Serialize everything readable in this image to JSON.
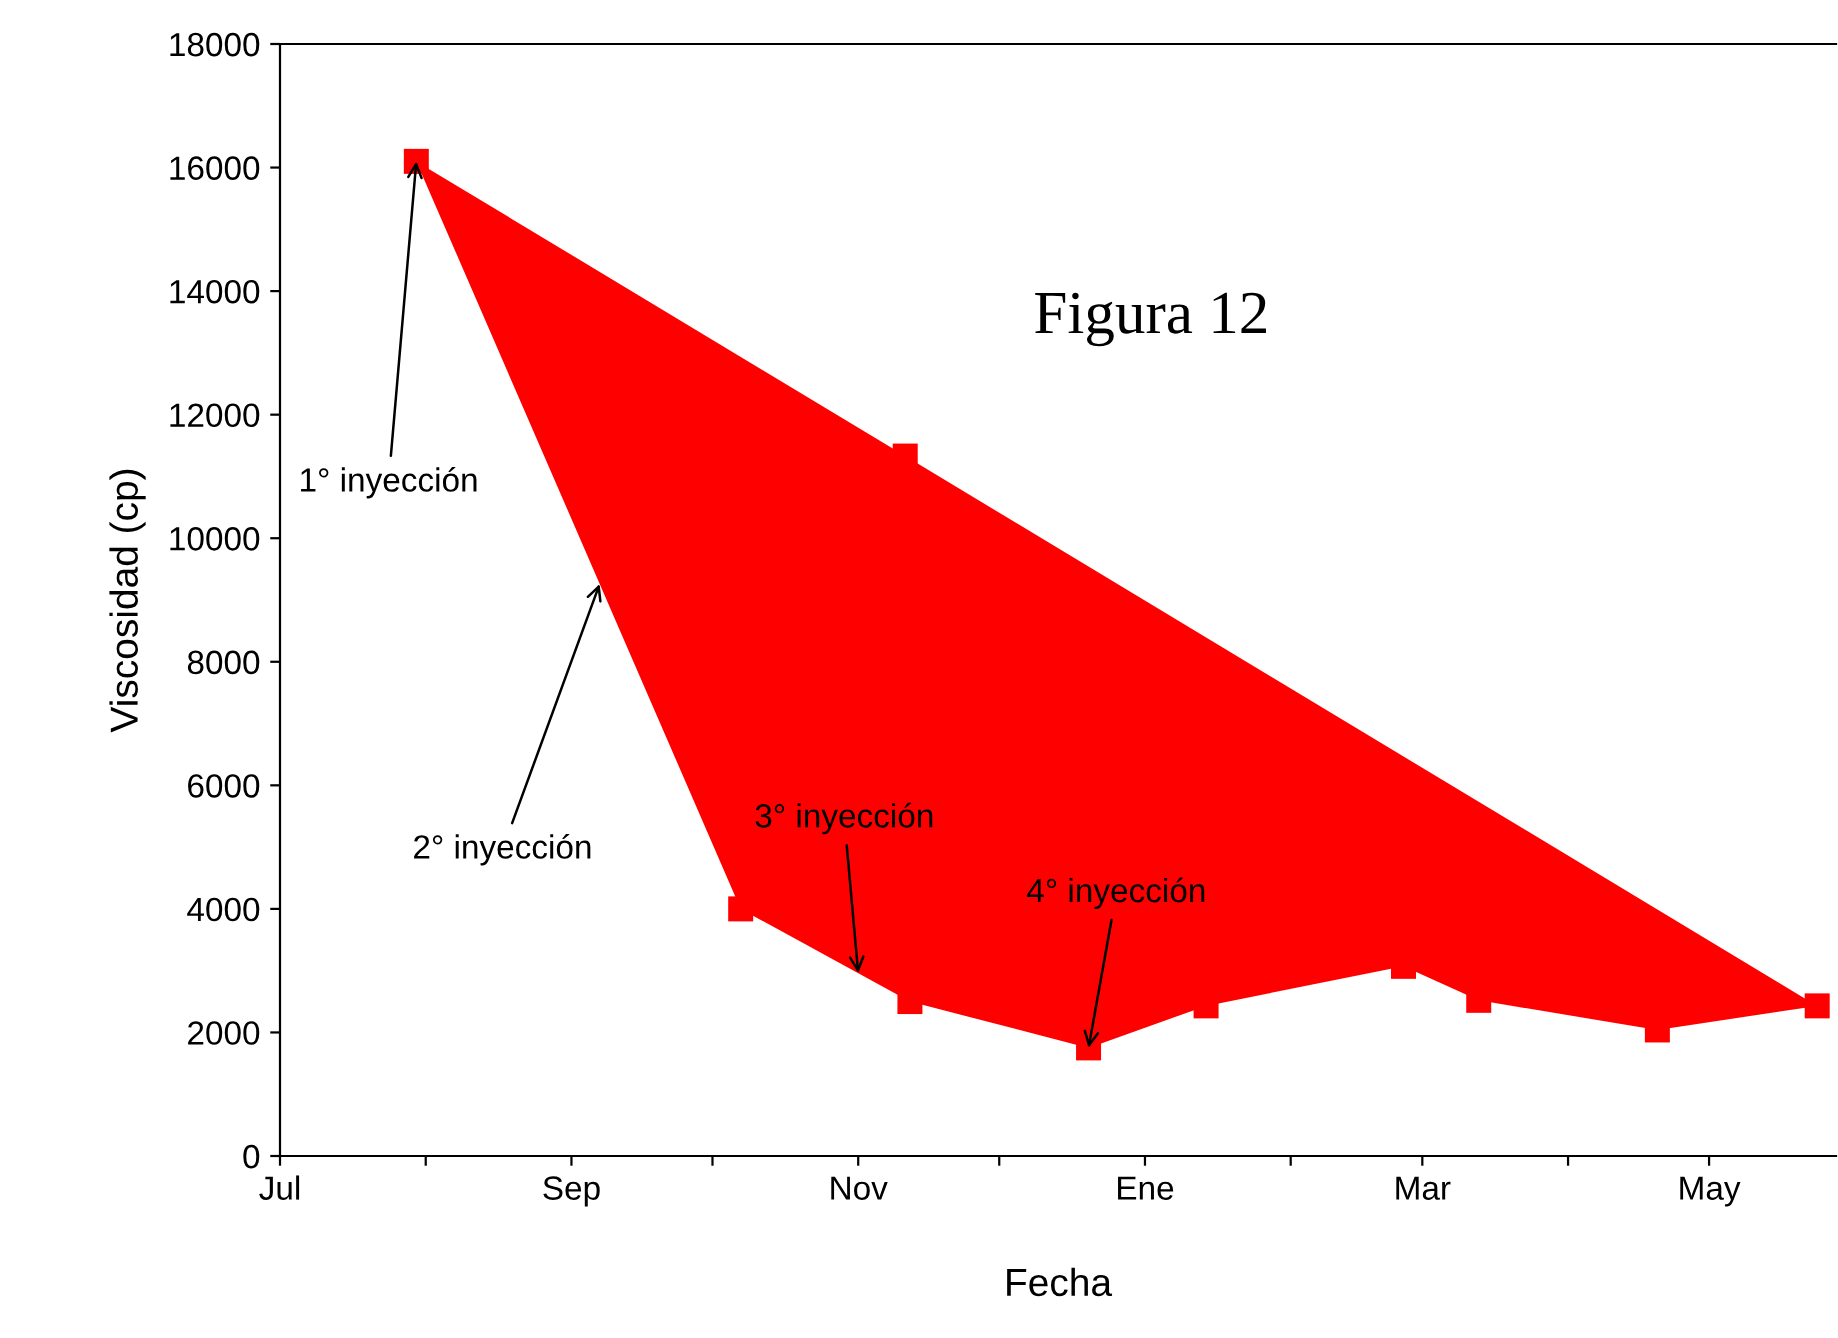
{
  "chart_data": {
    "type": "area",
    "title": "Figura 12",
    "xlabel": "Fecha",
    "ylabel": "Viscosidad (cp)",
    "x": [
      "2000-07-30",
      "2000-10-07",
      "2000-11-12",
      "2000-12-20",
      "2001-01-14",
      "2001-02-25",
      "2001-03-13",
      "2001-04-20",
      "2001-05-24",
      "2000-11-11"
    ],
    "series": [
      {
        "color": "#ff0000",
        "values": [
          16100,
          4000,
          2500,
          1750,
          2430,
          3070,
          2520,
          2040,
          2430,
          11330
        ]
      }
    ],
    "marker": "square",
    "grid": false,
    "legend": false,
    "xlim": [
      "2000-07-01",
      "2001-05-28"
    ],
    "xticks": [
      {
        "value": "2000-07-01",
        "label": "Jul"
      },
      {
        "value": "2000-08-01",
        "label": null
      },
      {
        "value": "2000-09-01",
        "label": "Sep"
      },
      {
        "value": "2000-10-01",
        "label": null
      },
      {
        "value": "2000-11-01",
        "label": "Nov"
      },
      {
        "value": "2000-12-01",
        "label": null
      },
      {
        "value": "2001-01-01",
        "label": "Ene"
      },
      {
        "value": "2001-02-01",
        "label": null
      },
      {
        "value": "2001-03-01",
        "label": "Mar"
      },
      {
        "value": "2001-04-01",
        "label": null
      },
      {
        "value": "2001-05-01",
        "label": "May"
      }
    ],
    "ylim": [
      0,
      18000
    ],
    "yticks": [
      0,
      2000,
      4000,
      6000,
      8000,
      10000,
      12000,
      14000,
      16000,
      18000
    ],
    "annotations": [
      {
        "text": "1° inyección",
        "x": "2000-07-30",
        "y": 16100
      },
      {
        "text": "2° inyección",
        "x": "2000-09-07",
        "y": 9260
      },
      {
        "text": "3° inyección",
        "x": "2000-11-01",
        "y": 2960
      },
      {
        "text": "4° inyección",
        "x": "2000-12-20",
        "y": 1750
      }
    ]
  }
}
